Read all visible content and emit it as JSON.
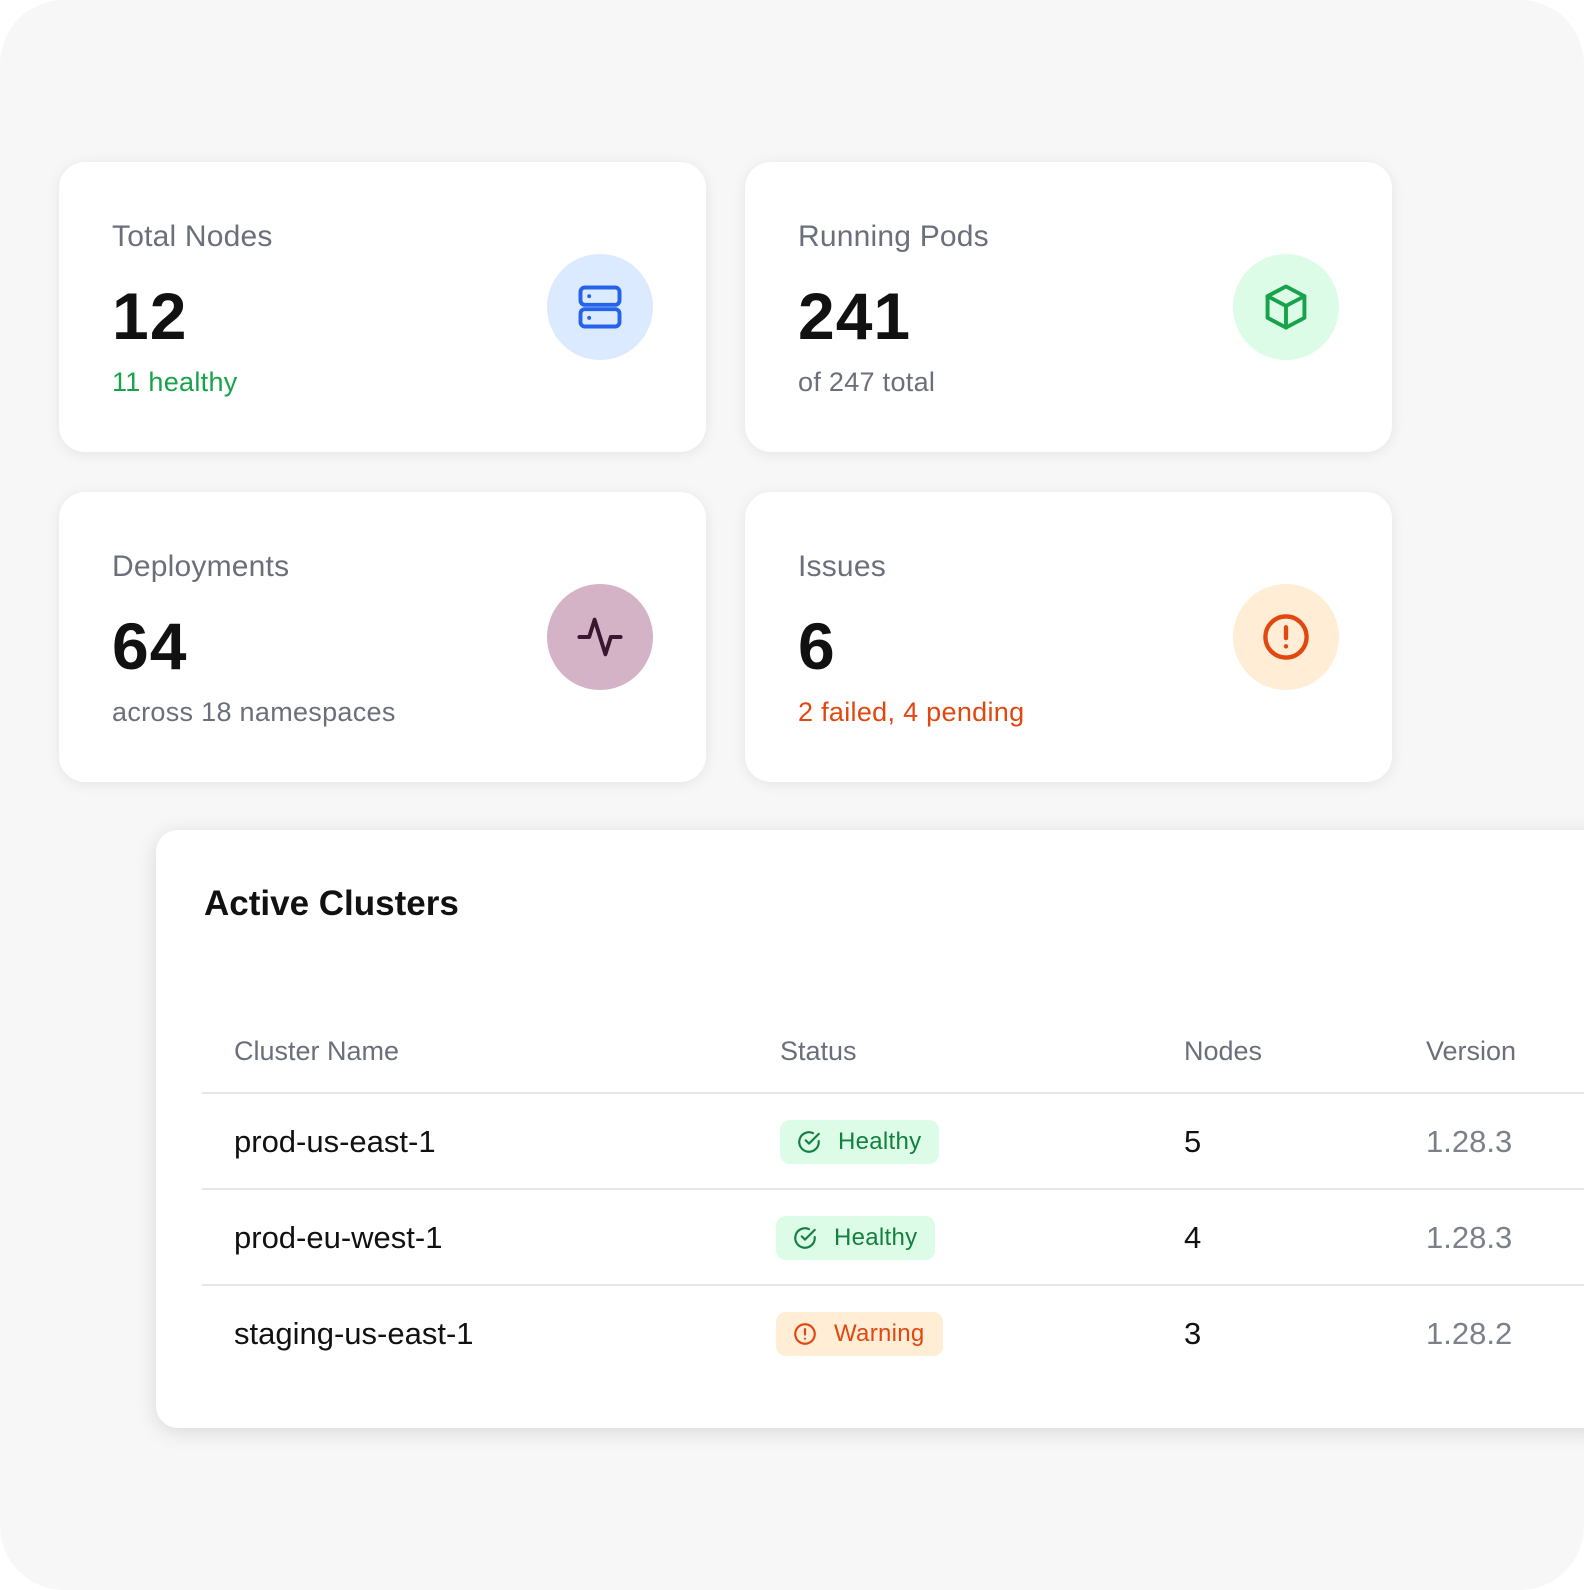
{
  "stats": [
    {
      "label": "Total Nodes",
      "value": "12",
      "sub": "11 healthy",
      "icon": "server-icon"
    },
    {
      "label": "Running Pods",
      "value": "241",
      "sub": "of 247 total",
      "icon": "box-icon"
    },
    {
      "label": "Deployments",
      "value": "64",
      "sub": "across 18 namespaces",
      "icon": "activity-icon"
    },
    {
      "label": "Issues",
      "value": "6",
      "sub": "2 failed, 4 pending",
      "icon": "alert-circle-icon"
    }
  ],
  "colors": {
    "healthy": "#16a34a",
    "warning": "#e1470f",
    "nodes_icon_bg": "#dbeafe",
    "nodes_icon": "#2563eb",
    "pods_icon_bg": "#dcfce7",
    "pods_icon": "#16a34a",
    "deploy_icon_bg": "#d4b3c7",
    "deploy_icon": "#3b1630",
    "issues_icon_bg": "#ffedd5",
    "issues_icon": "#e1470f"
  },
  "clusters": {
    "title": "Active Clusters",
    "columns": [
      "Cluster Name",
      "Status",
      "Nodes",
      "Version"
    ],
    "rows": [
      {
        "name": "prod-us-east-1",
        "status": "Healthy",
        "status_icon": "check-circle-icon",
        "nodes": "5",
        "version": "1.28.3"
      },
      {
        "name": "prod-eu-west-1",
        "status": "Healthy",
        "status_icon": "check-circle-icon",
        "nodes": "4",
        "version": "1.28.3"
      },
      {
        "name": "staging-us-east-1",
        "status": "Warning",
        "status_icon": "alert-circle-icon",
        "nodes": "3",
        "version": "1.28.2"
      }
    ]
  }
}
